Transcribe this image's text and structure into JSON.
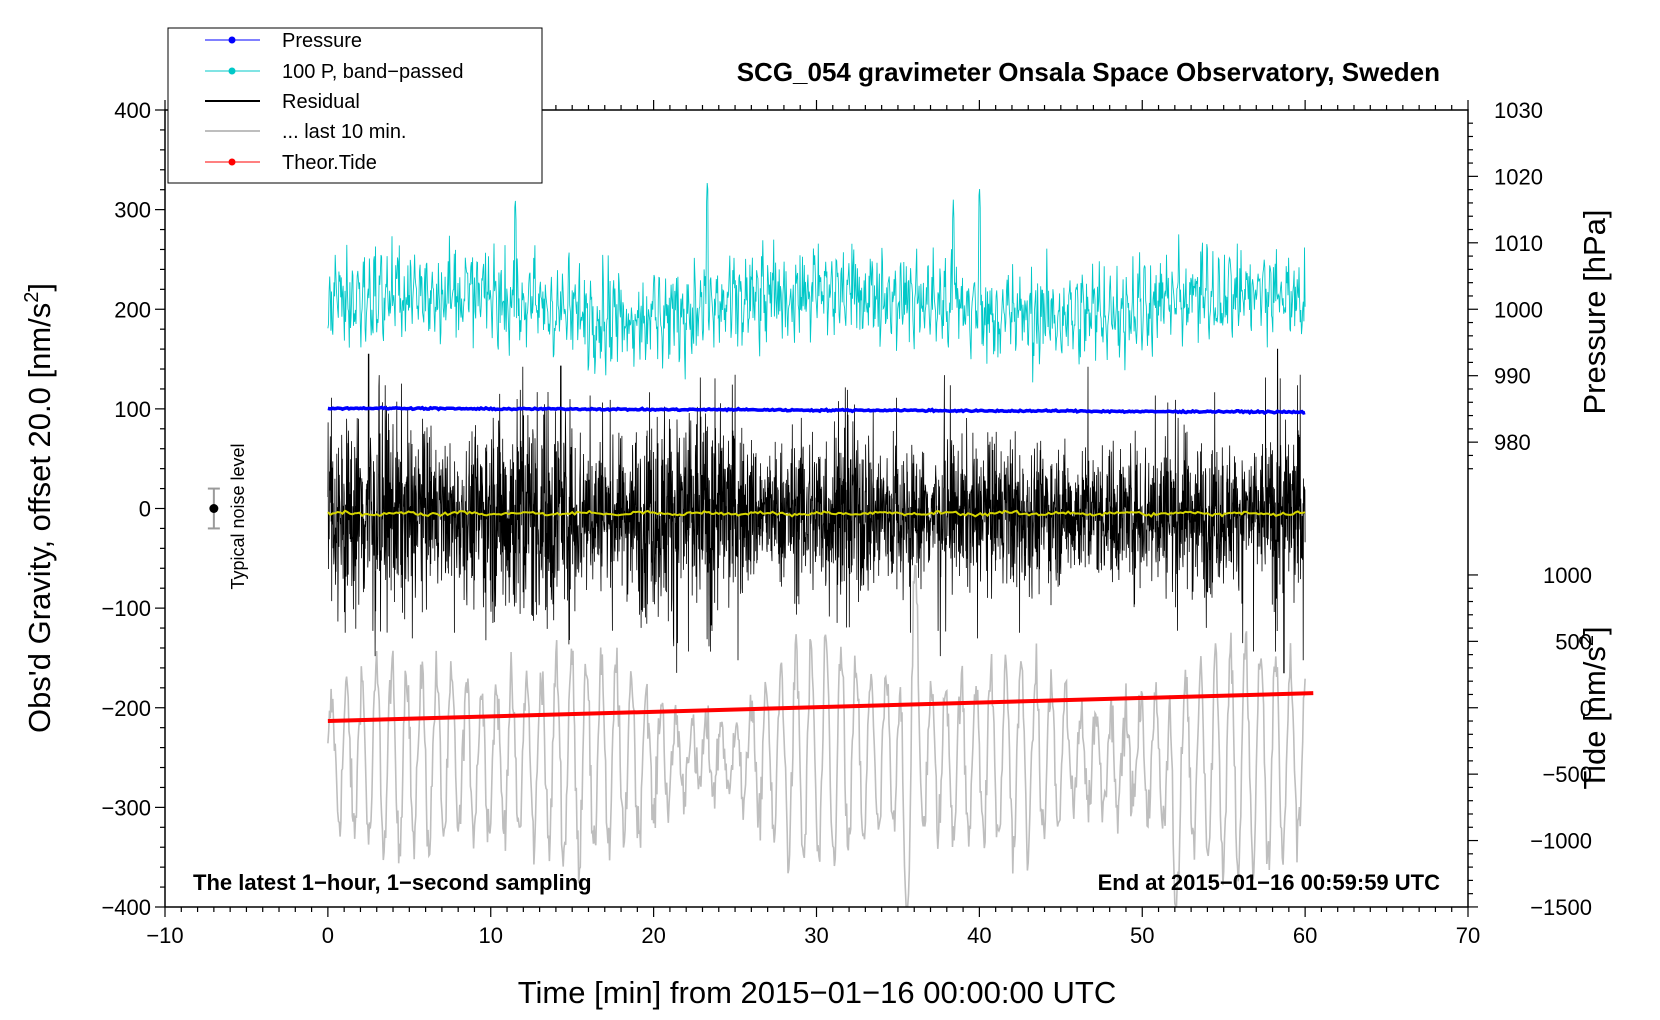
{
  "chart_data": {
    "type": "line",
    "title": "SCG_054 gravimeter Onsala Space Observatory, Sweden",
    "xlabel": "Time [min] from 2015−01−16 00:00:00 UTC",
    "ylabel_left_main": "Obs'd Gravity, offset 20.0 [nm/s",
    "ylabel_left_sup": "2",
    "ylabel_left_end": "]",
    "ylabel_right_pressure": "Pressure [hPa]",
    "ylabel_right_tide_main": "Tide [nm/s",
    "ylabel_right_tide_sup": "2",
    "ylabel_right_tide_end": "]",
    "xlim": [
      -10,
      70
    ],
    "ylim": [
      -400,
      400
    ],
    "x_ticks": [
      -10,
      0,
      10,
      20,
      30,
      40,
      50,
      60,
      70
    ],
    "x_tick_labels": [
      "−10",
      "0",
      "10",
      "20",
      "30",
      "40",
      "50",
      "60",
      "70"
    ],
    "y_ticks": [
      400,
      300,
      200,
      100,
      0,
      -100,
      -200,
      -300,
      -400
    ],
    "y_tick_labels": [
      "400",
      "300",
      "200",
      "100",
      "0",
      "−100",
      "−200",
      "−300",
      "−400"
    ],
    "pressure_axis": {
      "ticks": [
        980,
        990,
        1000,
        1010,
        1020,
        1030
      ],
      "tick_labels": [
        "980",
        "990",
        "1000",
        "1010",
        "1020",
        "1030"
      ],
      "gravity_at_1000": 200,
      "gravity_per_hPa": 6.67
    },
    "tide_axis": {
      "ticks": [
        1000,
        500,
        0,
        -500,
        -1000,
        -1500
      ],
      "tick_labels": [
        "1000",
        "500",
        "0",
        "−500",
        "−1000",
        "−1500"
      ],
      "gravity_at_0": -200,
      "gravity_per_unit": 0.1333
    },
    "notes": {
      "left": "The latest 1−hour, 1−second sampling",
      "right": "End at 2015−01−16 00:59:59 UTC"
    },
    "noise_marker": {
      "label": "Typical noise level",
      "x": -7,
      "y": 0,
      "err": 20
    },
    "legend": {
      "position": "top-left",
      "entries": [
        {
          "label": "Pressure",
          "color": "#0000ff",
          "marker": true
        },
        {
          "label": "100 P, band−passed",
          "color": "#00c8c8",
          "marker": true
        },
        {
          "label": "Residual",
          "color": "#000000",
          "marker": false
        },
        {
          "label": "... last 10 min.",
          "color": "#bebebe",
          "marker": false
        },
        {
          "label": "Theor.Tide",
          "color": "#ff0000",
          "marker": true
        }
      ]
    },
    "series": [
      {
        "name": "Pressure",
        "color": "#0000ff",
        "x_range": [
          0,
          60
        ],
        "values_hPa": [
          985.1,
          985.1,
          985.0,
          985.0,
          984.9,
          984.9,
          984.8,
          984.8,
          984.7,
          984.7,
          984.6,
          984.6,
          984.5
        ]
      },
      {
        "name": "100 P, band−passed",
        "color": "#00c8c8",
        "x_range": [
          0,
          60
        ],
        "approx_center_gravity": 205,
        "approx_amplitude_gravity": 45,
        "max_spikes": [
          {
            "x": 11.5,
            "y": 315
          },
          {
            "x": 23.3,
            "y": 333
          },
          {
            "x": 38.4,
            "y": 310
          },
          {
            "x": 40.0,
            "y": 327
          }
        ]
      },
      {
        "name": "Residual",
        "color": "#000000",
        "x_range": [
          0,
          60
        ],
        "approx_center_gravity": -5,
        "approx_amplitude_gravity": 70,
        "max_spikes": [
          {
            "x": 2.5,
            "y": 155
          },
          {
            "x": 14.3,
            "y": 143
          },
          {
            "x": 58.3,
            "y": 160
          },
          {
            "x": 58.7,
            "y": -165
          }
        ]
      },
      {
        "name": "Residual smoothed",
        "color": "#d4d400",
        "x_range": [
          0,
          60
        ],
        "approx_center_gravity": -5
      },
      {
        "name": "... last 10 min.",
        "color": "#bebebe",
        "x_range": [
          0,
          60
        ],
        "approx_center_gravity": -250,
        "approx_amplitude_gravity": 90,
        "max_spikes": [
          {
            "x": 35.5,
            "y": -400
          },
          {
            "x": 52.0,
            "y": -410
          },
          {
            "x": 36.0,
            "y": -85
          }
        ]
      },
      {
        "name": "Theor.Tide",
        "color": "#ff0000",
        "x_range": [
          0,
          60.5
        ],
        "tide_start": -100,
        "tide_end": 110
      }
    ]
  }
}
